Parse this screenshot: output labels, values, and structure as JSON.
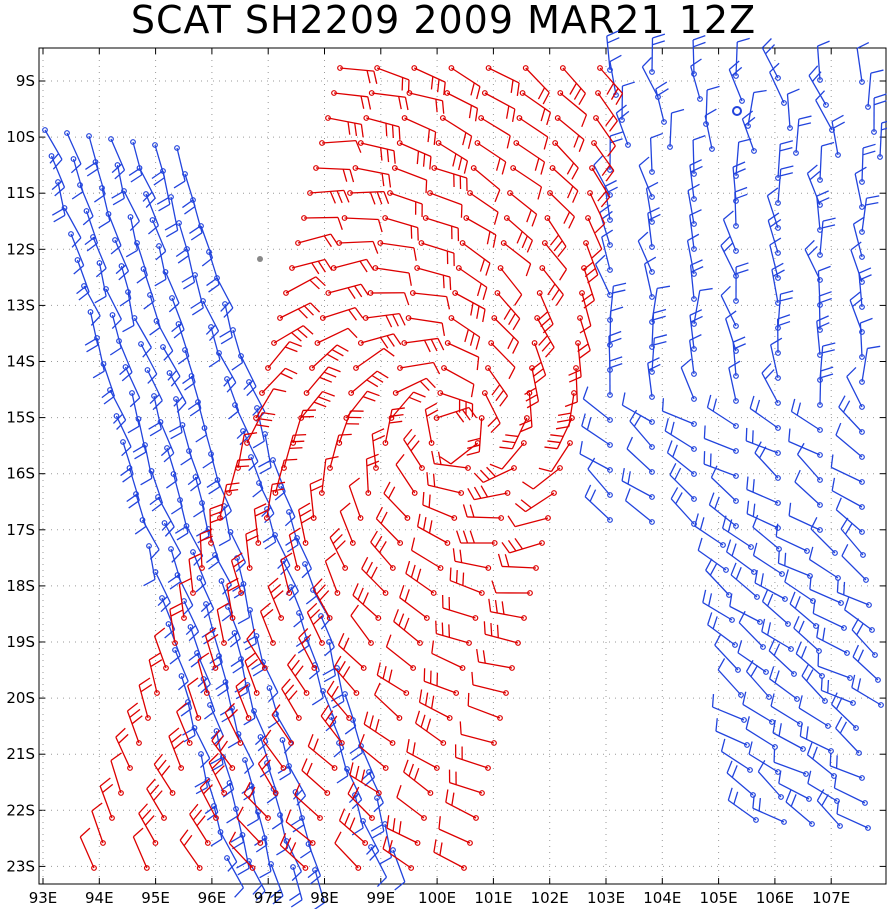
{
  "title": "SCAT SH2209 2009 MAR21 12Z",
  "lat_labels": [
    "9S",
    "10S",
    "11S",
    "12S",
    "13S",
    "14S",
    "15S",
    "16S",
    "17S",
    "18S",
    "19S",
    "20S",
    "21S",
    "22S",
    "23S"
  ],
  "lon_labels": [
    "93E",
    "94E",
    "95E",
    "96E",
    "97E",
    "98E",
    "99E",
    "100E",
    "101E",
    "102E",
    "103E",
    "104E",
    "105E",
    "106E",
    "107E"
  ],
  "colors": {
    "ascending_pass": "#2244dd",
    "descending_pass": "#dd0000",
    "grid": "#9a9a9a",
    "frame": "#000000"
  },
  "grid": "dotted",
  "wind_symbol": "barb"
}
